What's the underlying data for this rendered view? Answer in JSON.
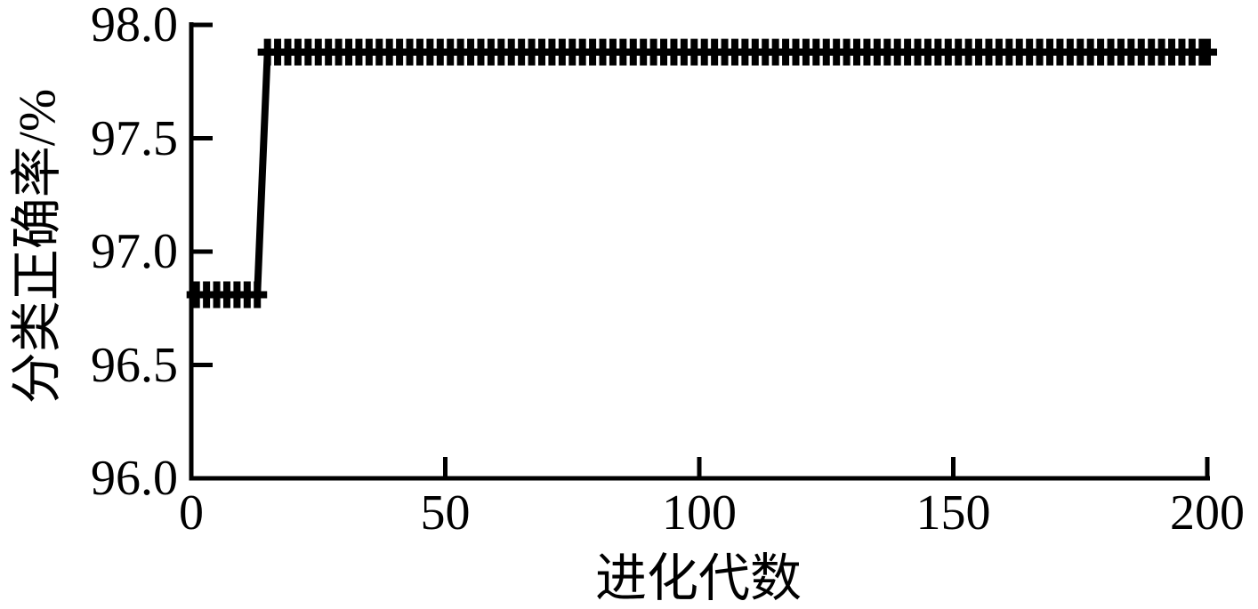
{
  "figure": {
    "background": "#ffffff",
    "ink_color": "#000000"
  },
  "chart_data": {
    "type": "line",
    "title": "",
    "xlabel": "进化代数",
    "ylabel": "分类正确率/%",
    "xlim": [
      0,
      200
    ],
    "ylim": [
      96.0,
      98.0
    ],
    "xticks": [
      {
        "value": 0,
        "label": "0"
      },
      {
        "value": 50,
        "label": "50"
      },
      {
        "value": 100,
        "label": "100"
      },
      {
        "value": 150,
        "label": "150"
      },
      {
        "value": 200,
        "label": "200"
      }
    ],
    "yticks": [
      {
        "value": 96.0,
        "label": "96.0"
      },
      {
        "value": 96.5,
        "label": "96.5"
      },
      {
        "value": 97.0,
        "label": "97.0"
      },
      {
        "value": 97.5,
        "label": "97.5"
      },
      {
        "value": 98.0,
        "label": "98.0"
      }
    ],
    "grid": false,
    "legend": "none",
    "tick_direction": "in",
    "marker": "plus",
    "marker_every": 2,
    "line_color": "#000000",
    "series": [
      {
        "name": "classification-accuracy",
        "color": "#000000",
        "runs": [
          {
            "from_x": 1,
            "to_x": 13,
            "y": 96.81
          },
          {
            "from_x": 14,
            "to_x": 14,
            "y": 97.35
          },
          {
            "from_x": 15,
            "to_x": 200,
            "y": 97.88
          }
        ]
      }
    ]
  }
}
